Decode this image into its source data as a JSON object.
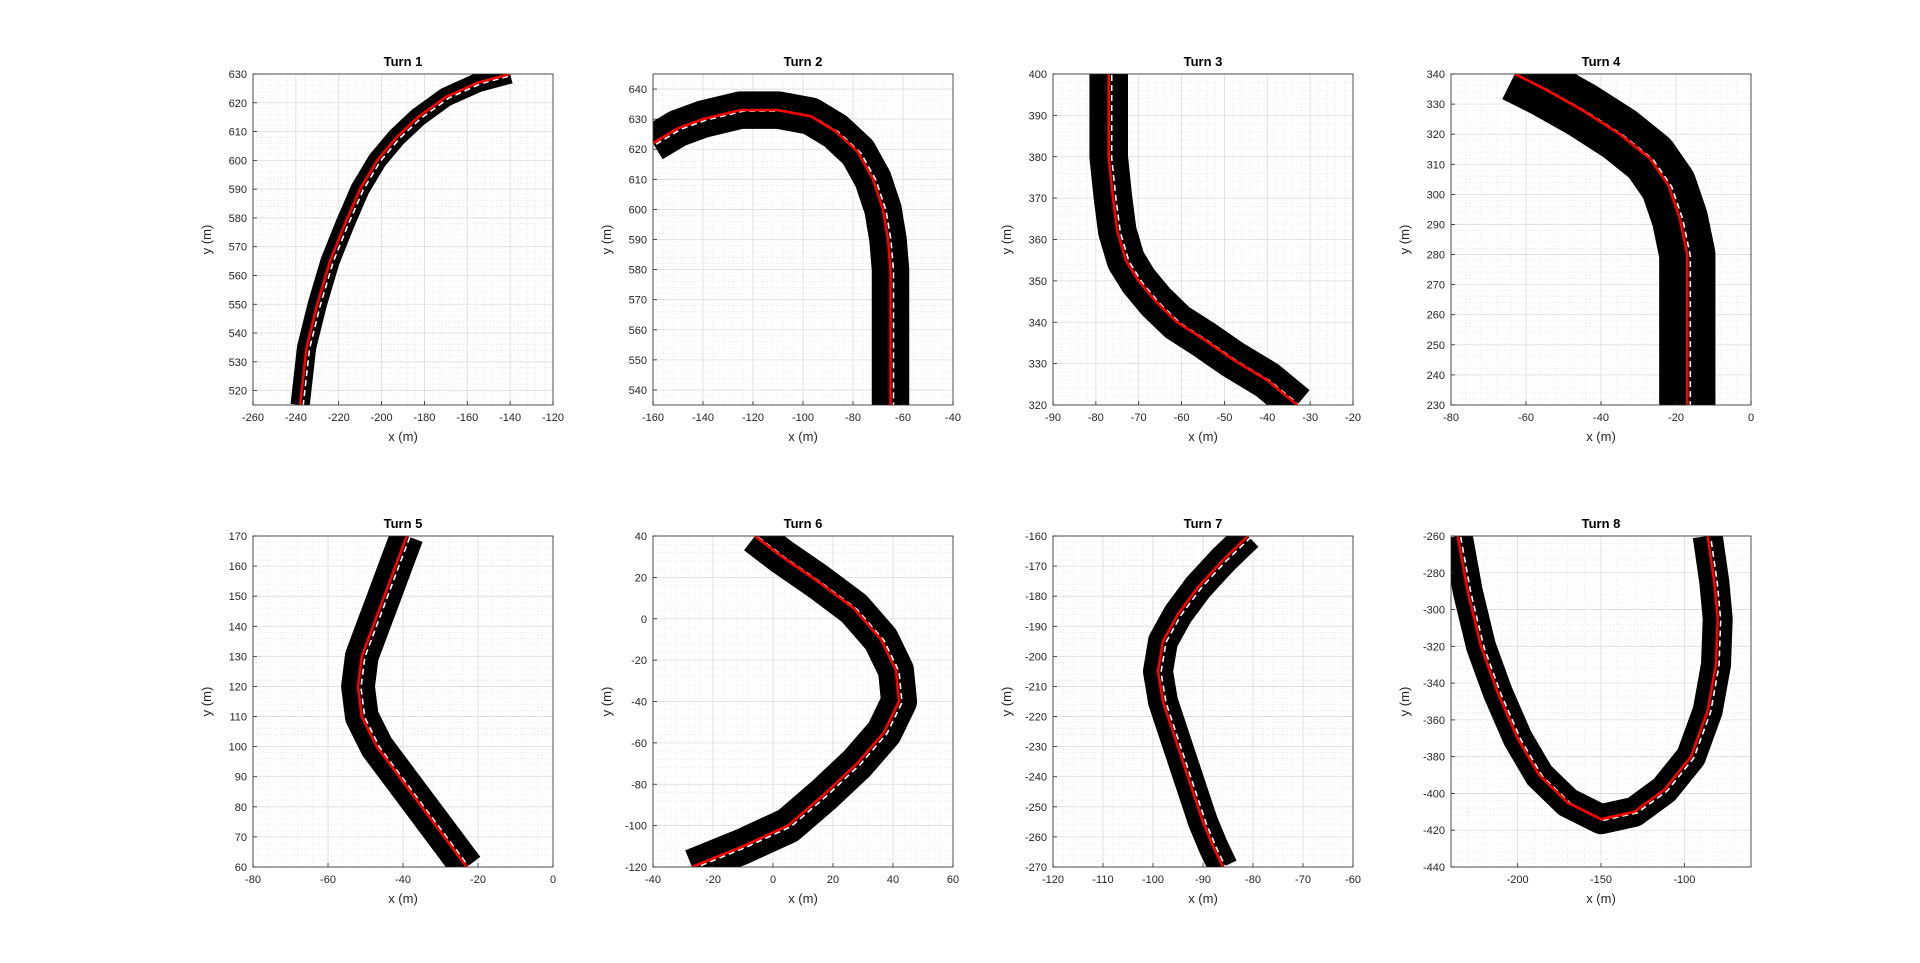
{
  "figure": {
    "background": "#ffffff",
    "colors": {
      "runs": "#000000",
      "mean": "#ff0000",
      "reference": "#ffffff",
      "grid": "#dcdcdc",
      "axis": "#262626"
    }
  },
  "chart_data": [
    {
      "type": "line",
      "title": "Turn 1",
      "xlabel": "x (m)",
      "ylabel": "y (m)",
      "xlim": [
        -260,
        -120
      ],
      "ylim": [
        515,
        630
      ],
      "xticks": [
        -260,
        -240,
        -220,
        -200,
        -180,
        -160,
        -140,
        -120
      ],
      "yticks": [
        520,
        530,
        540,
        550,
        560,
        570,
        580,
        590,
        600,
        610,
        620,
        630
      ],
      "grid": true,
      "minor_grid": true,
      "band_width_m": 3,
      "path": [
        [
          -238,
          515
        ],
        [
          -235,
          535
        ],
        [
          -230,
          550
        ],
        [
          -224,
          565
        ],
        [
          -217,
          578
        ],
        [
          -210,
          590
        ],
        [
          -202,
          600
        ],
        [
          -193,
          608
        ],
        [
          -183,
          615
        ],
        [
          -170,
          622
        ],
        [
          -155,
          627
        ],
        [
          -140,
          630
        ]
      ]
    },
    {
      "type": "line",
      "title": "Turn 2",
      "xlabel": "x (m)",
      "ylabel": "y (m)",
      "xlim": [
        -160,
        -40
      ],
      "ylim": [
        535,
        645
      ],
      "xticks": [
        -160,
        -140,
        -120,
        -100,
        -80,
        -60,
        -40
      ],
      "yticks": [
        540,
        550,
        560,
        570,
        580,
        590,
        600,
        610,
        620,
        630,
        640
      ],
      "grid": true,
      "minor_grid": true,
      "band_width_m": 5,
      "path": [
        [
          -160,
          622
        ],
        [
          -150,
          627
        ],
        [
          -140,
          630
        ],
        [
          -125,
          633
        ],
        [
          -110,
          633
        ],
        [
          -97,
          631
        ],
        [
          -87,
          626
        ],
        [
          -78,
          619
        ],
        [
          -72,
          610
        ],
        [
          -68,
          600
        ],
        [
          -66,
          590
        ],
        [
          -65,
          580
        ],
        [
          -65,
          570
        ],
        [
          -65,
          560
        ],
        [
          -65,
          550
        ],
        [
          -65,
          535
        ]
      ]
    },
    {
      "type": "line",
      "title": "Turn 3",
      "xlabel": "x (m)",
      "ylabel": "y (m)",
      "xlim": [
        -90,
        -20
      ],
      "ylim": [
        320,
        400
      ],
      "xticks": [
        -90,
        -80,
        -70,
        -60,
        -50,
        -40,
        -30,
        -20
      ],
      "yticks": [
        320,
        330,
        340,
        350,
        360,
        370,
        380,
        390,
        400
      ],
      "grid": true,
      "minor_grid": true,
      "band_width_m": 3,
      "path": [
        [
          -77,
          400
        ],
        [
          -77,
          390
        ],
        [
          -77,
          380
        ],
        [
          -76,
          370
        ],
        [
          -75,
          362
        ],
        [
          -73,
          355
        ],
        [
          -70,
          350
        ],
        [
          -66,
          345
        ],
        [
          -61,
          340
        ],
        [
          -55,
          336
        ],
        [
          -48,
          331
        ],
        [
          -40,
          326
        ],
        [
          -33,
          320
        ]
      ]
    },
    {
      "type": "line",
      "title": "Turn 4",
      "xlabel": "x (m)",
      "ylabel": "y (m)",
      "xlim": [
        -80,
        0
      ],
      "ylim": [
        230,
        340
      ],
      "xticks": [
        -80,
        -60,
        -40,
        -20,
        0
      ],
      "yticks": [
        230,
        240,
        250,
        260,
        270,
        280,
        290,
        300,
        310,
        320,
        330,
        340
      ],
      "grid": true,
      "minor_grid": true,
      "band_width_m": 5,
      "path": [
        [
          -63,
          340
        ],
        [
          -55,
          335
        ],
        [
          -45,
          328
        ],
        [
          -35,
          320
        ],
        [
          -27,
          312
        ],
        [
          -22,
          303
        ],
        [
          -19,
          292
        ],
        [
          -17,
          280
        ],
        [
          -17,
          268
        ],
        [
          -17,
          255
        ],
        [
          -17,
          243
        ],
        [
          -17,
          230
        ]
      ]
    },
    {
      "type": "line",
      "title": "Turn 5",
      "xlabel": "x (m)",
      "ylabel": "y (m)",
      "xlim": [
        -80,
        0
      ],
      "ylim": [
        60,
        170
      ],
      "xticks": [
        -80,
        -60,
        -40,
        -20,
        0
      ],
      "yticks": [
        60,
        70,
        80,
        90,
        100,
        110,
        120,
        130,
        140,
        150,
        160,
        170
      ],
      "grid": true,
      "minor_grid": true,
      "band_width_m": 3,
      "path": [
        [
          -39,
          170
        ],
        [
          -42,
          160
        ],
        [
          -45,
          150
        ],
        [
          -48,
          140
        ],
        [
          -51,
          130
        ],
        [
          -52,
          120
        ],
        [
          -51,
          110
        ],
        [
          -47,
          100
        ],
        [
          -41,
          90
        ],
        [
          -35,
          80
        ],
        [
          -29,
          70
        ],
        [
          -23,
          60
        ]
      ]
    },
    {
      "type": "line",
      "title": "Turn 6",
      "xlabel": "x (m)",
      "ylabel": "y (m)",
      "xlim": [
        -40,
        60
      ],
      "ylim": [
        -120,
        40
      ],
      "xticks": [
        -40,
        -20,
        0,
        20,
        40,
        60
      ],
      "yticks": [
        -120,
        -100,
        -80,
        -60,
        -40,
        -20,
        0,
        20,
        40
      ],
      "grid": true,
      "minor_grid": true,
      "band_width_m": 4,
      "path": [
        [
          -6,
          40
        ],
        [
          3,
          30
        ],
        [
          15,
          18
        ],
        [
          27,
          5
        ],
        [
          36,
          -10
        ],
        [
          41,
          -25
        ],
        [
          42,
          -40
        ],
        [
          37,
          -55
        ],
        [
          28,
          -70
        ],
        [
          17,
          -85
        ],
        [
          5,
          -100
        ],
        [
          -10,
          -110
        ],
        [
          -27,
          -120
        ]
      ]
    },
    {
      "type": "line",
      "title": "Turn 7",
      "xlabel": "x (m)",
      "ylabel": "y (m)",
      "xlim": [
        -120,
        -60
      ],
      "ylim": [
        -270,
        -160
      ],
      "xticks": [
        -120,
        -110,
        -100,
        -90,
        -80,
        -70,
        -60
      ],
      "yticks": [
        -270,
        -260,
        -250,
        -240,
        -230,
        -220,
        -210,
        -200,
        -190,
        -180,
        -170,
        -160
      ],
      "grid": true,
      "minor_grid": true,
      "band_width_m": 2,
      "path": [
        [
          -81,
          -160
        ],
        [
          -86,
          -168
        ],
        [
          -91,
          -177
        ],
        [
          -95,
          -186
        ],
        [
          -98,
          -195
        ],
        [
          -99,
          -205
        ],
        [
          -98,
          -215
        ],
        [
          -96,
          -225
        ],
        [
          -94,
          -235
        ],
        [
          -92,
          -245
        ],
        [
          -90,
          -255
        ],
        [
          -88,
          -263
        ],
        [
          -86,
          -270
        ]
      ]
    },
    {
      "type": "line",
      "title": "Turn 8",
      "xlabel": "x (m)",
      "ylabel": "y (m)",
      "xlim": [
        -240,
        -60
      ],
      "ylim": [
        -440,
        -260
      ],
      "xticks": [
        -200,
        -150,
        -100
      ],
      "yticks": [
        -440,
        -420,
        -400,
        -380,
        -360,
        -340,
        -320,
        -300,
        -280,
        -260
      ],
      "grid": true,
      "minor_grid": true,
      "band_width_m": 6,
      "path": [
        [
          -236,
          -260
        ],
        [
          -230,
          -290
        ],
        [
          -222,
          -320
        ],
        [
          -212,
          -345
        ],
        [
          -200,
          -370
        ],
        [
          -187,
          -390
        ],
        [
          -170,
          -405
        ],
        [
          -150,
          -414
        ],
        [
          -130,
          -410
        ],
        [
          -112,
          -398
        ],
        [
          -96,
          -380
        ],
        [
          -86,
          -355
        ],
        [
          -81,
          -330
        ],
        [
          -80,
          -305
        ],
        [
          -82,
          -285
        ],
        [
          -86,
          -260
        ]
      ]
    }
  ]
}
